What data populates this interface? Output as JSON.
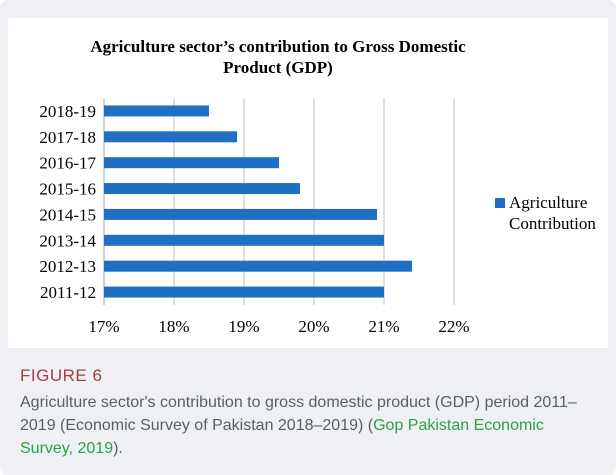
{
  "figure": {
    "label": "FIGURE 6",
    "caption_before": "Agriculture sector's contribution to gross domestic product (GDP) period 2011–2019 (Economic Survey of Pakistan 2018–2019) (",
    "caption_link": "Gop Pakistan Economic Survey, 2019",
    "caption_after": ")."
  },
  "chart_data": {
    "type": "bar",
    "orientation": "horizontal",
    "title": "Agriculture sector’s contribution to Gross Domestic Product (GDP)",
    "categories": [
      "2018-19",
      "2017-18",
      "2016-17",
      "2015-16",
      "2014-15",
      "2013-14",
      "2012-13",
      "2011-12"
    ],
    "series": [
      {
        "name": "Agriculture Contribution",
        "values": [
          18.5,
          18.9,
          19.5,
          19.8,
          20.9,
          21.0,
          21.4,
          21.0
        ]
      }
    ],
    "x_ticks": [
      "17%",
      "18%",
      "19%",
      "20%",
      "21%",
      "22%"
    ],
    "xlim": [
      17,
      22
    ],
    "xlabel": "",
    "ylabel": "",
    "grid": true,
    "legend_position": "right",
    "colors": {
      "bar": "#1f6fc5",
      "grid": "#bfbfbf",
      "caption_label": "#a63d46",
      "caption_link": "#2aa24a"
    }
  }
}
